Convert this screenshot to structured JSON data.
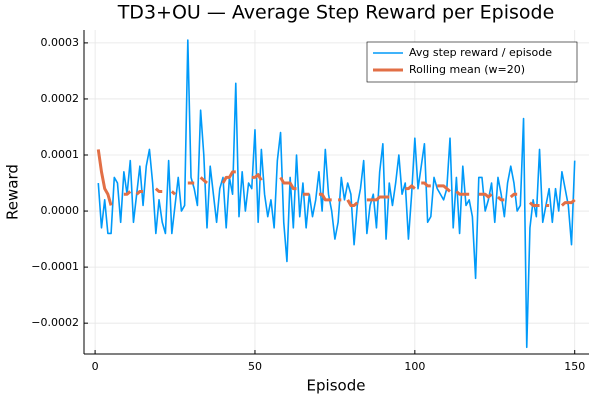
{
  "chart_data": {
    "type": "line",
    "title": "TD3+OU — Average Step Reward per Episode",
    "x_label": "Episode",
    "y_label": "Reward",
    "x": [
      1,
      2,
      3,
      4,
      5,
      6,
      7,
      8,
      9,
      10,
      11,
      12,
      13,
      14,
      15,
      16,
      17,
      18,
      19,
      20,
      21,
      22,
      23,
      24,
      25,
      26,
      27,
      28,
      29,
      30,
      31,
      32,
      33,
      34,
      35,
      36,
      37,
      38,
      39,
      40,
      41,
      42,
      43,
      44,
      45,
      46,
      47,
      48,
      49,
      50,
      51,
      52,
      53,
      54,
      55,
      56,
      57,
      58,
      59,
      60,
      61,
      62,
      63,
      64,
      65,
      66,
      67,
      68,
      69,
      70,
      71,
      72,
      73,
      74,
      75,
      76,
      77,
      78,
      79,
      80,
      81,
      82,
      83,
      84,
      85,
      86,
      87,
      88,
      89,
      90,
      91,
      92,
      93,
      94,
      95,
      96,
      97,
      98,
      99,
      100,
      101,
      102,
      103,
      104,
      105,
      106,
      107,
      108,
      109,
      110,
      111,
      112,
      113,
      114,
      115,
      116,
      117,
      118,
      119,
      120,
      121,
      122,
      123,
      124,
      125,
      126,
      127,
      128,
      129,
      130,
      131,
      132,
      133,
      134,
      135,
      136,
      137,
      138,
      139,
      140,
      141,
      142,
      143,
      144,
      145,
      146,
      147,
      148,
      149,
      150
    ],
    "series": [
      {
        "name": "Avg step reward / episode",
        "color": "#009af9",
        "width": 1.6,
        "values": [
          5e-05,
          -3e-05,
          2e-05,
          -4e-05,
          -4e-05,
          6e-05,
          5e-05,
          -2e-05,
          7e-05,
          3e-05,
          9e-05,
          -2e-05,
          3e-05,
          8e-05,
          1e-05,
          8e-05,
          0.00011,
          5e-05,
          -4e-05,
          2e-05,
          -2e-05,
          -4e-05,
          9e-05,
          -4e-05,
          1e-05,
          6e-05,
          0,
          1e-05,
          0.000305,
          6e-05,
          4e-05,
          1e-05,
          0.00018,
          0.0001,
          -3e-05,
          8e-05,
          3e-05,
          -2e-05,
          4e-05,
          6e-05,
          -3e-05,
          6e-05,
          3e-05,
          0.000228,
          -1e-05,
          7e-05,
          0,
          5e-05,
          4e-05,
          0.000145,
          -2e-05,
          0.00011,
          3e-05,
          -1e-05,
          2e-05,
          -3e-05,
          9e-05,
          0.00014,
          -2e-05,
          -9e-05,
          6e-05,
          -3e-05,
          0.0001,
          -1e-05,
          5e-05,
          -3e-05,
          3e-05,
          -1e-05,
          2e-05,
          7e-05,
          0,
          0.00011,
          3e-05,
          0,
          -5e-05,
          -2e-05,
          6e-05,
          2e-05,
          5e-05,
          3e-05,
          -6e-05,
          1e-05,
          4e-05,
          9e-05,
          -4e-05,
          1e-05,
          3e-05,
          -3e-05,
          7e-05,
          0.00012,
          -5e-05,
          5e-05,
          1e-05,
          5e-05,
          0.0001,
          3e-05,
          5e-05,
          -5e-05,
          3e-05,
          0.00013,
          4e-05,
          8e-05,
          0.00012,
          -2e-05,
          -1e-05,
          6e-05,
          4e-05,
          3e-05,
          2e-05,
          4e-05,
          0.00013,
          -3e-05,
          6e-05,
          -4e-05,
          8e-05,
          1e-05,
          2e-05,
          -1e-05,
          -0.00012,
          6e-05,
          6e-05,
          0,
          2e-05,
          5e-05,
          -2e-05,
          6e-05,
          3e-05,
          -1e-05,
          5e-05,
          8e-05,
          5e-05,
          0,
          1e-05,
          0.000165,
          -0.000243,
          -3e-05,
          2e-05,
          -1e-05,
          0.00011,
          -2e-05,
          1e-05,
          4e-05,
          -2e-05,
          4e-05,
          0,
          7e-05,
          4e-05,
          1e-05,
          -6e-05,
          9e-05
        ]
      },
      {
        "name": "Rolling mean (w=20)",
        "color": "#e26f46",
        "width": 3,
        "values": [
          0.00011,
          7e-05,
          4e-05,
          3e-05,
          1e-05,
          null,
          null,
          null,
          3e-05,
          3e-05,
          3.5e-05,
          null,
          3e-05,
          3.5e-05,
          3.5e-05,
          null,
          null,
          null,
          4e-05,
          3.5e-05,
          3.5e-05,
          null,
          null,
          3.5e-05,
          3e-05,
          null,
          null,
          null,
          5e-05,
          5e-05,
          5e-05,
          null,
          6e-05,
          5.5e-05,
          5e-05,
          null,
          null,
          null,
          null,
          5e-05,
          6e-05,
          6e-05,
          7e-05,
          7e-05,
          null,
          null,
          null,
          null,
          6e-05,
          6e-05,
          6.5e-05,
          5.5e-05,
          null,
          null,
          null,
          null,
          null,
          6e-05,
          5e-05,
          5e-05,
          5e-05,
          4e-05,
          4e-05,
          null,
          3e-05,
          3e-05,
          3e-05,
          null,
          null,
          3e-05,
          3e-05,
          2e-05,
          2e-05,
          2e-05,
          null,
          2e-05,
          2e-05,
          null,
          2e-05,
          1e-05,
          1e-05,
          1.5e-05,
          null,
          null,
          2e-05,
          2e-05,
          2e-05,
          2e-05,
          2.5e-05,
          2.5e-05,
          2.5e-05,
          2.5e-05,
          null,
          null,
          null,
          null,
          4e-05,
          4e-05,
          4.5e-05,
          4e-05,
          null,
          5e-05,
          5e-05,
          4.5e-05,
          4.5e-05,
          null,
          4.5e-05,
          4.5e-05,
          4.5e-05,
          4e-05,
          3.5e-05,
          null,
          3.5e-05,
          3e-05,
          3e-05,
          3e-05,
          3e-05,
          null,
          null,
          3e-05,
          3e-05,
          3e-05,
          2.5e-05,
          3e-05,
          null,
          2.5e-05,
          2e-05,
          2e-05,
          null,
          2.5e-05,
          3e-05,
          3e-05,
          null,
          null,
          null,
          1.5e-05,
          1e-05,
          1e-05,
          1e-05,
          null,
          1e-05,
          1e-05,
          null,
          null,
          null,
          1e-05,
          1.5e-05,
          1.5e-05,
          1.5e-05,
          2e-05
        ]
      }
    ],
    "xlim": [
      -3.47,
      154.47
    ],
    "xticks": [
      0,
      50,
      100,
      150
    ],
    "ylim": [
      -0.000255,
      0.000323
    ],
    "yticks": [
      {
        "value": -0.0002,
        "label": "−0.0002"
      },
      {
        "value": -0.0001,
        "label": "−0.0001"
      },
      {
        "value": 0,
        "label": "0.0000"
      },
      {
        "value": 0.0001,
        "label": "0.0001"
      },
      {
        "value": 0.0002,
        "label": "0.0002"
      },
      {
        "value": 0.0003,
        "label": "0.0003"
      }
    ],
    "grid": true,
    "legend_position": "topright"
  }
}
